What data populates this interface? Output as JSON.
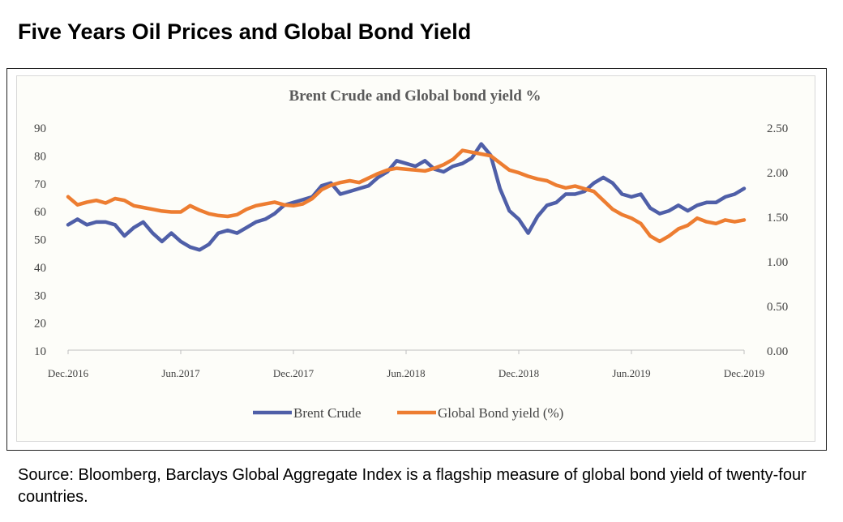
{
  "page": {
    "heading": "Five Years Oil Prices and Global Bond Yield",
    "source": "Source: Bloomberg, Barclays Global Aggregate Index is a flagship measure of global bond yield of twenty-four countries."
  },
  "chart_data": {
    "type": "line",
    "title": "Brent Crude and Global bond yield %",
    "x_tick_labels": [
      "Dec.2016",
      "Jun.2017",
      "Dec.2017",
      "Jun.2018",
      "Dec.2018",
      "Jun.2019",
      "Dec.2019"
    ],
    "y_left": {
      "ylim": [
        10,
        90
      ],
      "ticks": [
        "10",
        "20",
        "30",
        "40",
        "50",
        "60",
        "70",
        "80",
        "90"
      ]
    },
    "y_right": {
      "ylim": [
        0,
        2.5
      ],
      "ticks": [
        "0.00",
        "0.50",
        "1.00",
        "1.50",
        "2.00",
        "2.50"
      ]
    },
    "x": [
      0,
      0.5,
      1,
      1.5,
      2,
      2.5,
      3,
      3.5,
      4,
      4.5,
      5,
      5.5,
      6,
      6.5,
      7,
      7.5,
      8,
      8.5,
      9,
      9.5,
      10,
      10.5,
      11,
      11.5,
      12,
      12.5,
      13,
      13.5,
      14,
      14.5,
      15,
      15.5,
      16,
      16.5,
      17,
      17.5,
      18,
      18.5,
      19,
      19.5,
      20,
      20.5,
      21,
      21.5,
      22,
      22.5,
      23,
      23.5,
      24,
      24.5,
      25,
      25.5,
      26,
      26.5,
      27,
      27.5,
      28,
      28.5,
      29,
      29.5,
      30,
      30.5,
      31,
      31.5,
      32,
      32.5,
      33,
      33.5,
      34,
      34.5,
      35,
      35.5,
      36
    ],
    "series": [
      {
        "name": "Brent Crude",
        "axis": "left",
        "color": "#4f5fa8",
        "values": [
          55,
          57,
          55,
          56,
          56,
          55,
          51,
          54,
          56,
          52,
          49,
          52,
          49,
          47,
          46,
          48,
          52,
          53,
          52,
          54,
          56,
          57,
          59,
          62,
          63,
          64,
          65,
          69,
          70,
          66,
          67,
          68,
          69,
          72,
          74,
          78,
          77,
          76,
          78,
          75,
          74,
          76,
          77,
          79,
          84,
          80,
          68,
          60,
          57,
          52,
          58,
          62,
          63,
          66,
          66,
          67,
          70,
          72,
          70,
          66,
          65,
          66,
          61,
          59,
          60,
          62,
          60,
          62,
          63,
          63,
          65,
          66,
          68
        ]
      },
      {
        "name": "Global Bond yield (%)",
        "axis": "right",
        "color": "#ed7d31",
        "values": [
          1.72,
          1.63,
          1.66,
          1.68,
          1.65,
          1.7,
          1.68,
          1.62,
          1.6,
          1.58,
          1.56,
          1.55,
          1.55,
          1.62,
          1.57,
          1.53,
          1.51,
          1.5,
          1.52,
          1.58,
          1.62,
          1.64,
          1.66,
          1.63,
          1.62,
          1.64,
          1.7,
          1.8,
          1.85,
          1.88,
          1.9,
          1.88,
          1.93,
          1.98,
          2.02,
          2.04,
          2.03,
          2.02,
          2.01,
          2.04,
          2.08,
          2.14,
          2.24,
          2.22,
          2.2,
          2.18,
          2.1,
          2.02,
          1.99,
          1.95,
          1.92,
          1.9,
          1.85,
          1.82,
          1.84,
          1.81,
          1.78,
          1.68,
          1.58,
          1.52,
          1.48,
          1.42,
          1.28,
          1.22,
          1.28,
          1.36,
          1.4,
          1.48,
          1.44,
          1.42,
          1.46,
          1.44,
          1.46
        ]
      }
    ],
    "grid": false,
    "legend_position": "bottom"
  }
}
